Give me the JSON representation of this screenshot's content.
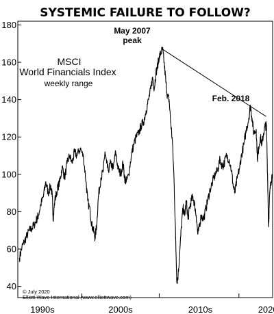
{
  "chart_data": {
    "type": "line",
    "title": "SYSTEMIC FAILURE TO FOLLOW?",
    "subtitle_lines": [
      "MSCI",
      "World Financials Index",
      "weekly range"
    ],
    "annotations": [
      {
        "label_lines": [
          "May 2007",
          "peak"
        ],
        "x": 2007.4,
        "y": 167
      },
      {
        "label_lines": [
          "Feb. 2018"
        ],
        "x": 2018.1,
        "y": 137
      }
    ],
    "trendline": {
      "from": {
        "x": 2007.4,
        "y": 167
      },
      "to": {
        "x": 2020.0,
        "y": 131
      }
    },
    "xlabel": "",
    "ylabel": "",
    "xlim": [
      1989.8,
      2020.8
    ],
    "ylim": [
      34,
      182
    ],
    "yticks": [
      40,
      60,
      80,
      100,
      120,
      140,
      160,
      180
    ],
    "xticks": [
      {
        "label": "1990s",
        "pos": 1992.8
      },
      {
        "label": "2000s",
        "pos": 2002.3
      },
      {
        "label": "2010s",
        "pos": 2012.0
      },
      {
        "label": "2020s",
        "pos": 2020.5
      }
    ],
    "xticks_minor": [
      1997.6,
      2007.0,
      2016.7
    ],
    "series": [
      {
        "points": [
          [
            1990.0,
            55
          ],
          [
            1990.3,
            61
          ],
          [
            1990.6,
            64
          ],
          [
            1990.9,
            67
          ],
          [
            1991.2,
            70
          ],
          [
            1991.5,
            71
          ],
          [
            1991.8,
            73
          ],
          [
            1992.1,
            76
          ],
          [
            1992.3,
            78
          ],
          [
            1992.6,
            84
          ],
          [
            1992.9,
            88
          ],
          [
            1993.2,
            96
          ],
          [
            1993.5,
            90
          ],
          [
            1993.8,
            94
          ],
          [
            1994.0,
            88
          ],
          [
            1994.1,
            76
          ],
          [
            1994.3,
            86
          ],
          [
            1994.6,
            92
          ],
          [
            1994.9,
            96
          ],
          [
            1995.2,
            104
          ],
          [
            1995.5,
            98
          ],
          [
            1995.8,
            106
          ],
          [
            1996.1,
            110
          ],
          [
            1996.4,
            106
          ],
          [
            1996.7,
            112
          ],
          [
            1997.0,
            110
          ],
          [
            1997.4,
            114
          ],
          [
            1997.8,
            109
          ],
          [
            1998.1,
            96
          ],
          [
            1998.3,
            86
          ],
          [
            1998.6,
            80
          ],
          [
            1998.8,
            73
          ],
          [
            1999.0,
            70
          ],
          [
            1999.2,
            66
          ],
          [
            1999.4,
            73
          ],
          [
            1999.6,
            88
          ],
          [
            1999.9,
            98
          ],
          [
            2000.2,
            102
          ],
          [
            2000.4,
            112
          ],
          [
            2000.6,
            106
          ],
          [
            2000.8,
            102
          ],
          [
            2001.1,
            106
          ],
          [
            2001.4,
            103
          ],
          [
            2001.7,
            112
          ],
          [
            2002.0,
            103
          ],
          [
            2002.3,
            100
          ],
          [
            2002.6,
            106
          ],
          [
            2002.8,
            98
          ],
          [
            2003.0,
            96
          ],
          [
            2003.3,
            100
          ],
          [
            2003.6,
            110
          ],
          [
            2003.9,
            116
          ],
          [
            2004.2,
            120
          ],
          [
            2004.5,
            122
          ],
          [
            2004.8,
            126
          ],
          [
            2005.1,
            128
          ],
          [
            2005.4,
            134
          ],
          [
            2005.7,
            140
          ],
          [
            2006.0,
            146
          ],
          [
            2006.2,
            152
          ],
          [
            2006.4,
            146
          ],
          [
            2006.6,
            154
          ],
          [
            2006.8,
            158
          ],
          [
            2007.0,
            163
          ],
          [
            2007.2,
            165
          ],
          [
            2007.4,
            167
          ],
          [
            2007.6,
            160
          ],
          [
            2007.8,
            150
          ],
          [
            2008.0,
            142
          ],
          [
            2008.2,
            140
          ],
          [
            2008.4,
            128
          ],
          [
            2008.6,
            118
          ],
          [
            2008.8,
            98
          ],
          [
            2009.0,
            66
          ],
          [
            2009.15,
            42
          ],
          [
            2009.3,
            46
          ],
          [
            2009.5,
            58
          ],
          [
            2009.7,
            72
          ],
          [
            2009.9,
            82
          ],
          [
            2010.1,
            78
          ],
          [
            2010.3,
            86
          ],
          [
            2010.5,
            76
          ],
          [
            2010.7,
            82
          ],
          [
            2010.9,
            86
          ],
          [
            2011.1,
            88
          ],
          [
            2011.3,
            84
          ],
          [
            2011.5,
            78
          ],
          [
            2011.7,
            68
          ],
          [
            2011.9,
            72
          ],
          [
            2012.1,
            78
          ],
          [
            2012.4,
            76
          ],
          [
            2012.7,
            82
          ],
          [
            2012.9,
            86
          ],
          [
            2013.2,
            92
          ],
          [
            2013.5,
            96
          ],
          [
            2013.8,
            100
          ],
          [
            2014.1,
            102
          ],
          [
            2014.4,
            108
          ],
          [
            2014.7,
            104
          ],
          [
            2014.9,
            106
          ],
          [
            2015.2,
            110
          ],
          [
            2015.5,
            108
          ],
          [
            2015.8,
            102
          ],
          [
            2016.0,
            94
          ],
          [
            2016.2,
            90
          ],
          [
            2016.5,
            98
          ],
          [
            2016.8,
            104
          ],
          [
            2017.0,
            110
          ],
          [
            2017.3,
            116
          ],
          [
            2017.6,
            124
          ],
          [
            2017.9,
            130
          ],
          [
            2018.1,
            137
          ],
          [
            2018.3,
            130
          ],
          [
            2018.5,
            122
          ],
          [
            2018.8,
            124
          ],
          [
            2018.95,
            108
          ],
          [
            2019.1,
            114
          ],
          [
            2019.3,
            120
          ],
          [
            2019.5,
            116
          ],
          [
            2019.7,
            122
          ],
          [
            2019.9,
            126
          ],
          [
            2020.05,
            126
          ],
          [
            2020.2,
            96
          ],
          [
            2020.3,
            72
          ],
          [
            2020.45,
            90
          ],
          [
            2020.6,
            96
          ],
          [
            2020.75,
            100
          ]
        ]
      }
    ]
  },
  "credits": [
    "© July 2020",
    "Elliott Wave International (www.elliottwave.com)"
  ],
  "colors": {
    "background": "#ffffff",
    "line": "#000000"
  }
}
